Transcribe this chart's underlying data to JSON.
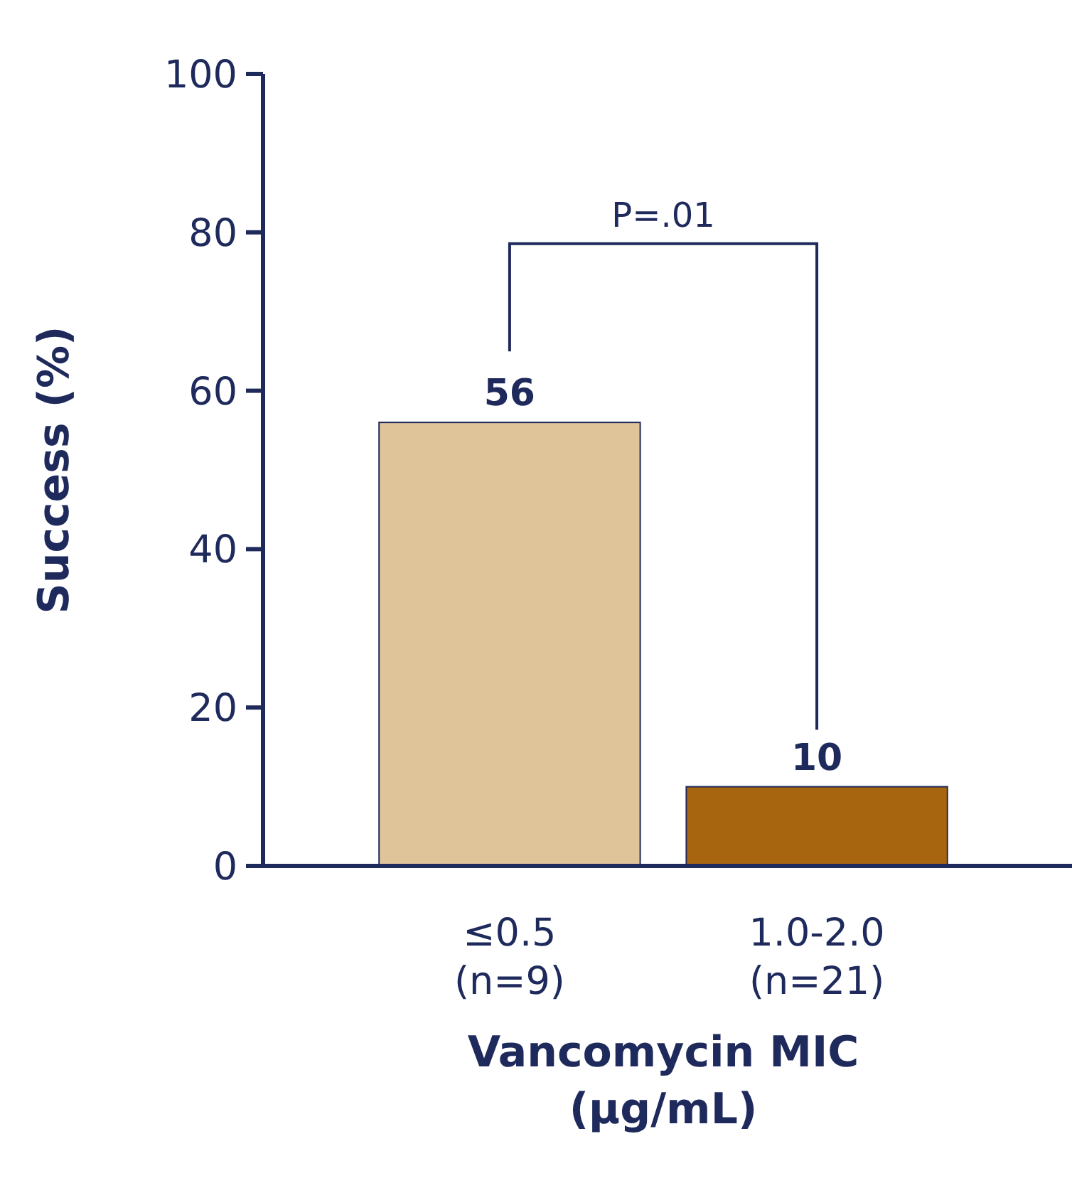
{
  "chart_data": {
    "type": "bar",
    "ylabel": "Success (%)",
    "xlabel": "Vancomycin MIC (µg/mL)",
    "categories": [
      "≤0.5\n(n=9)",
      "1.0-2.0\n(n=21)"
    ],
    "values": [
      56,
      10
    ],
    "colors": [
      "#dfc49a",
      "#a8650f"
    ],
    "ylim": [
      0,
      100
    ],
    "yticks": [
      0,
      20,
      40,
      60,
      80,
      100
    ],
    "data_labels": true,
    "grid": false,
    "annotations": [
      "P=.01"
    ]
  }
}
